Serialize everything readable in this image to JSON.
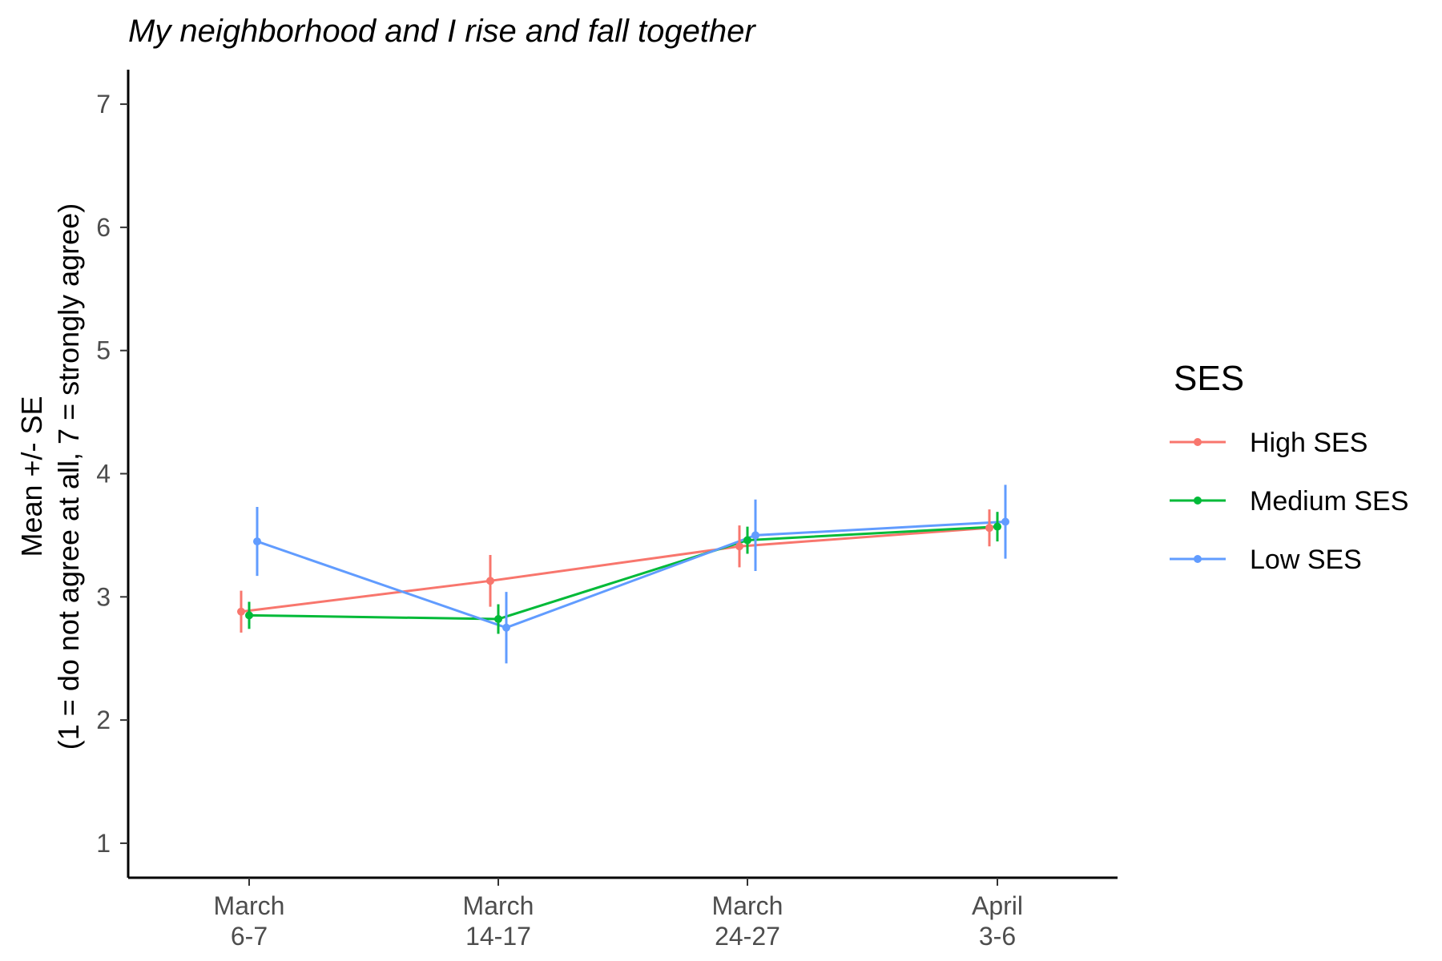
{
  "chart_data": {
    "type": "line",
    "title": "My neighborhood and I rise and fall together",
    "xlabel": "",
    "ylabel_line1": "Mean +/- SE",
    "ylabel_line2": "(1 = do not agree at all, 7 = strongly agree)",
    "categories": [
      {
        "line1": "March",
        "line2": "6-7"
      },
      {
        "line1": "March",
        "line2": "14-17"
      },
      {
        "line1": "March",
        "line2": "24-27"
      },
      {
        "line1": "April",
        "line2": "3-6"
      }
    ],
    "ylim": [
      0.72,
      7.28
    ],
    "yticks": [
      "1",
      "2",
      "3",
      "4",
      "5",
      "6",
      "7"
    ],
    "legend_title": "SES",
    "legend_position": "right",
    "series": [
      {
        "name": "High SES",
        "color": "#F8766D",
        "values": [
          2.88,
          3.13,
          3.41,
          3.56
        ],
        "se": [
          0.17,
          0.21,
          0.17,
          0.15
        ]
      },
      {
        "name": "Medium SES",
        "color": "#00BA38",
        "values": [
          2.85,
          2.82,
          3.46,
          3.57
        ],
        "se": [
          0.11,
          0.12,
          0.11,
          0.12
        ]
      },
      {
        "name": "Low SES",
        "color": "#619CFF",
        "values": [
          3.45,
          2.75,
          3.5,
          3.61
        ],
        "se": [
          0.28,
          0.29,
          0.29,
          0.3
        ]
      }
    ]
  }
}
